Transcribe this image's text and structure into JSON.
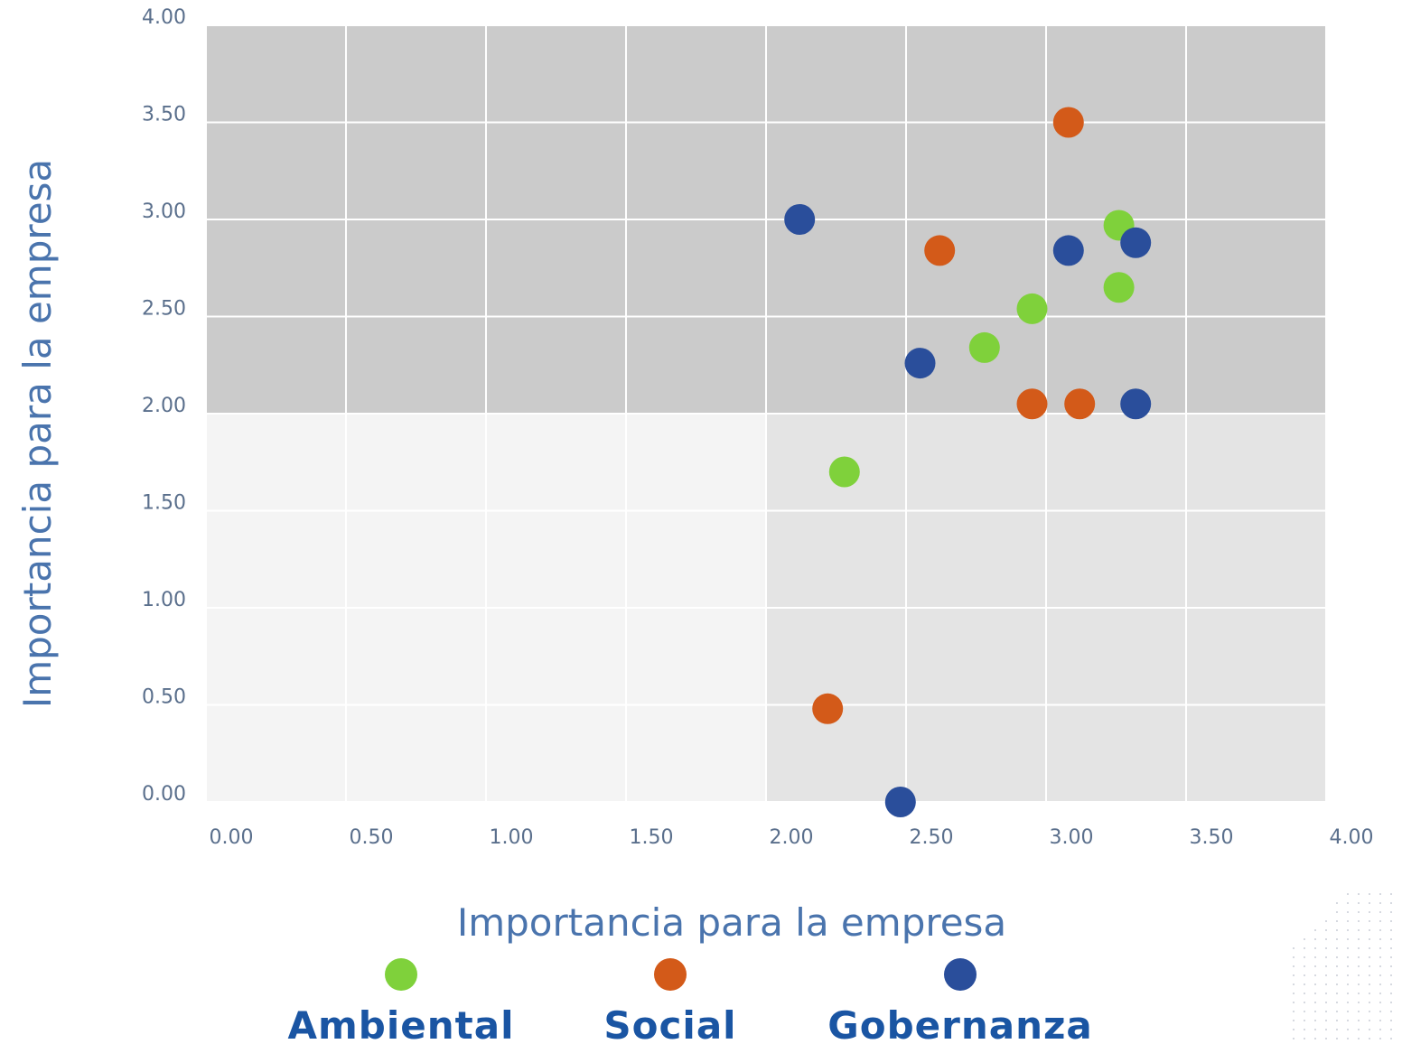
{
  "chart_data": {
    "type": "scatter",
    "xlabel": "Importancia para la empresa",
    "ylabel": "Importancia para la empresa",
    "xlim": [
      0,
      4
    ],
    "ylim": [
      0,
      4
    ],
    "x_ticks": [
      "0.00",
      "0.50",
      "1.00",
      "1.50",
      "2.00",
      "2.50",
      "3.00",
      "3.50",
      "4.00"
    ],
    "y_ticks": [
      "0.00",
      "0.50",
      "1.00",
      "1.50",
      "2.00",
      "2.50",
      "3.00",
      "3.50",
      "4.00"
    ],
    "grid": true,
    "quadrant_threshold": {
      "x": 2.0,
      "y": 2.0
    },
    "legend_position": "bottom",
    "series": [
      {
        "name": "Ambiental",
        "color": "#7fd13b",
        "points": [
          {
            "x": 2.28,
            "y": 1.7
          },
          {
            "x": 2.78,
            "y": 2.34
          },
          {
            "x": 2.95,
            "y": 2.54
          },
          {
            "x": 3.26,
            "y": 2.65
          },
          {
            "x": 3.26,
            "y": 2.97
          }
        ]
      },
      {
        "name": "Social",
        "color": "#d35a19",
        "points": [
          {
            "x": 2.22,
            "y": 0.48
          },
          {
            "x": 2.62,
            "y": 2.84
          },
          {
            "x": 2.95,
            "y": 2.05
          },
          {
            "x": 3.12,
            "y": 2.05
          },
          {
            "x": 3.08,
            "y": 3.5
          }
        ]
      },
      {
        "name": "Gobernanza",
        "color": "#2a4e9b",
        "points": [
          {
            "x": 2.12,
            "y": 3.0
          },
          {
            "x": 2.55,
            "y": 2.26
          },
          {
            "x": 2.48,
            "y": 0.0
          },
          {
            "x": 3.08,
            "y": 2.84
          },
          {
            "x": 3.32,
            "y": 2.88
          },
          {
            "x": 3.32,
            "y": 2.05
          }
        ]
      }
    ]
  }
}
